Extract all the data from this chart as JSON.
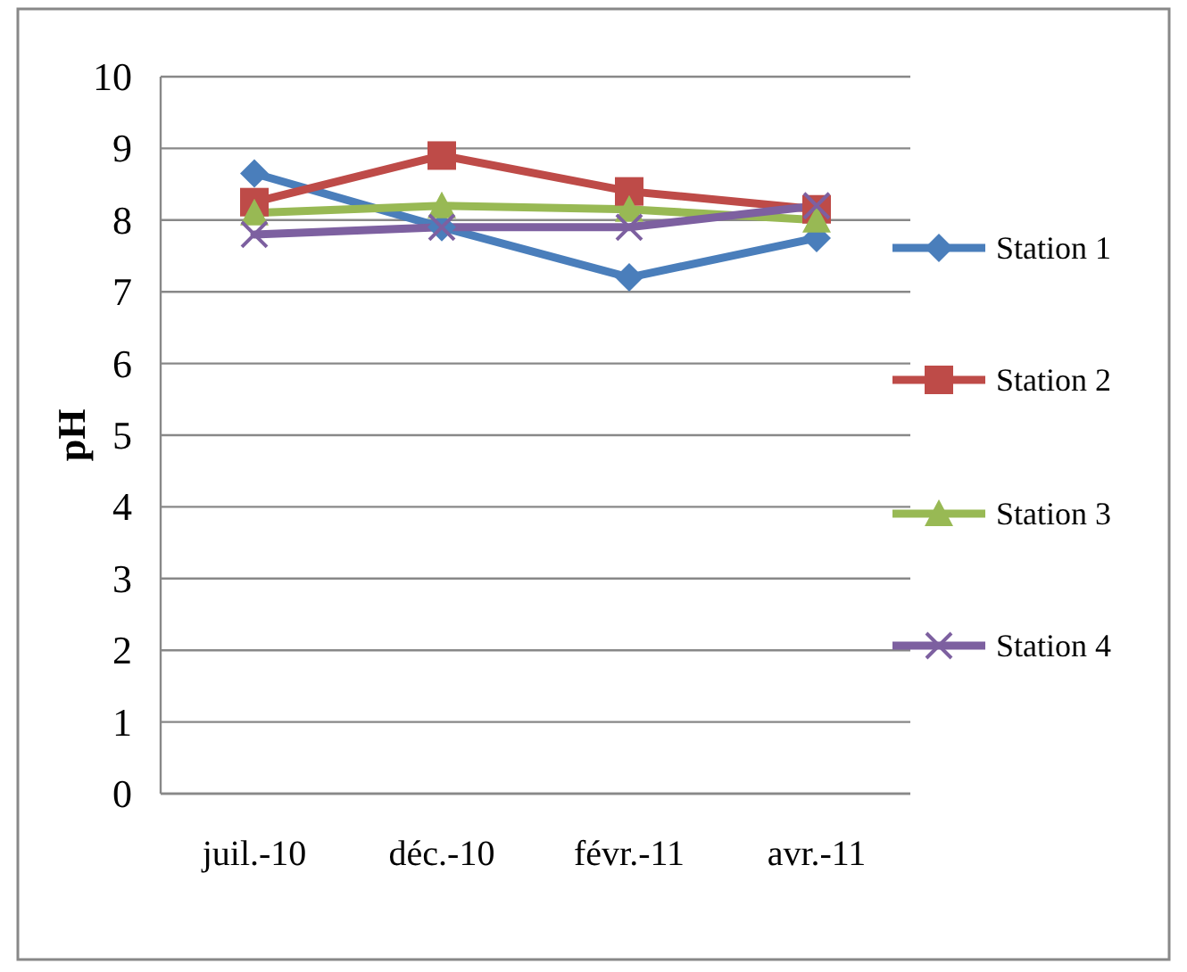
{
  "chart_data": {
    "type": "line",
    "ylabel": "pH",
    "categories": [
      "juil.-10",
      "déc.-10",
      "févr.-11",
      "avr.-11"
    ],
    "ylim": [
      0,
      10
    ],
    "yticks": [
      0,
      1,
      2,
      3,
      4,
      5,
      6,
      7,
      8,
      9,
      10
    ],
    "grid": "y",
    "legend": "right",
    "series": [
      {
        "name": "Station 1",
        "color": "#4a7ebb",
        "marker": "diamond",
        "values": [
          8.65,
          7.9,
          7.2,
          7.75
        ]
      },
      {
        "name": "Station 2",
        "color": "#be4b48",
        "marker": "square",
        "values": [
          8.25,
          8.9,
          8.4,
          8.15
        ]
      },
      {
        "name": "Station 3",
        "color": "#98b954",
        "marker": "triangle",
        "values": [
          8.1,
          8.2,
          8.15,
          8.0
        ]
      },
      {
        "name": "Station 4",
        "color": "#7d60a0",
        "marker": "cross",
        "values": [
          7.8,
          7.9,
          7.9,
          8.2
        ]
      }
    ]
  }
}
